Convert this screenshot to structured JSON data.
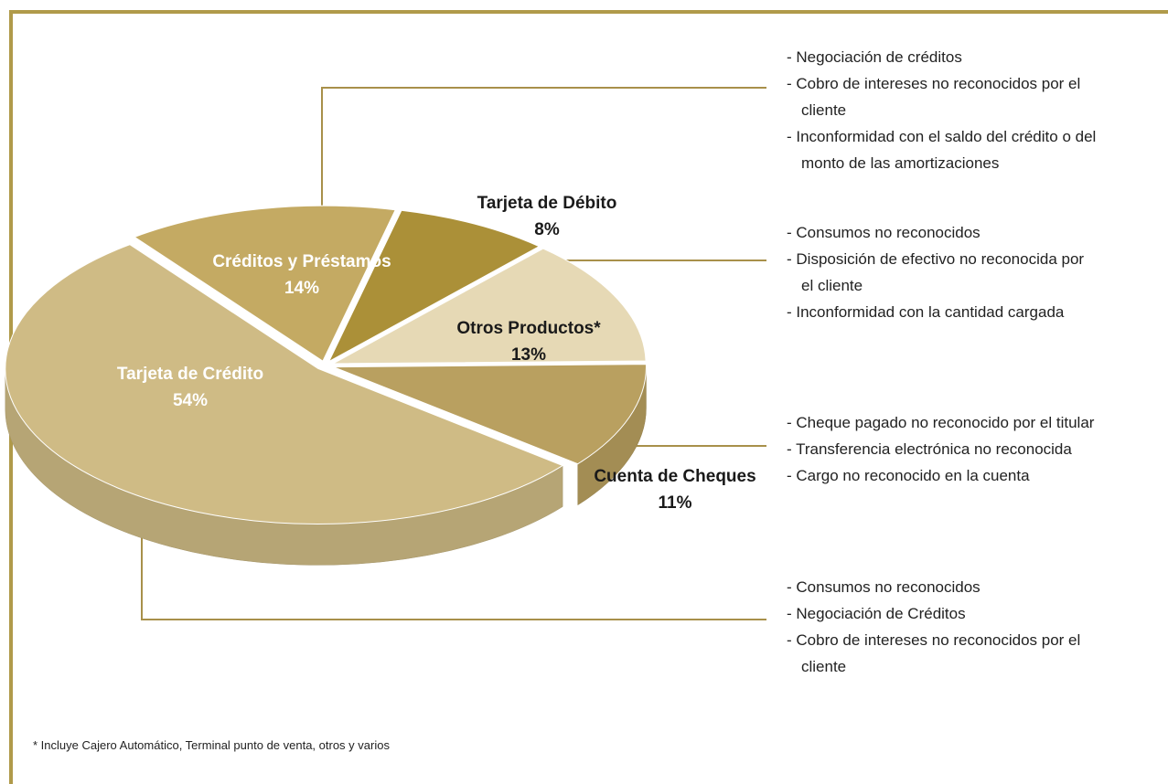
{
  "chart_data": {
    "type": "pie",
    "categories": [
      "Tarjeta de Crédito",
      "Créditos y Préstamos",
      "Tarjeta de Débito",
      "Otros Productos*",
      "Cuenta de Cheques"
    ],
    "values": [
      54,
      14,
      8,
      13,
      11
    ],
    "value_labels": [
      "54%",
      "14%",
      "8%",
      "13%",
      "11%"
    ],
    "colors": [
      "#cfbb85",
      "#c4aa63",
      "#ab9038",
      "#e6d9b5",
      "#b9a060"
    ],
    "annotations": [
      [
        "- Negociación de créditos",
        "- Cobro de intereses no reconocidos por el\ncliente",
        "- Inconformidad con el saldo del crédito o del\nmonto de las amortizaciones"
      ],
      [
        "- Consumos no reconocidos",
        "- Disposición de efectivo no reconocida por\nel cliente",
        "- Inconformidad con la cantidad cargada"
      ],
      [
        "- Cheque pagado no reconocido por el titular",
        "- Transferencia electrónica no reconocida",
        "- Cargo no reconocido en la cuenta"
      ],
      [
        "- Consumos no reconocidos",
        "- Negociación de Créditos",
        "- Cobro de intereses no reconocidos por el\ncliente"
      ]
    ],
    "footnote": "* Incluye Cajero Automático, Terminal punto de venta, otros y varios"
  }
}
